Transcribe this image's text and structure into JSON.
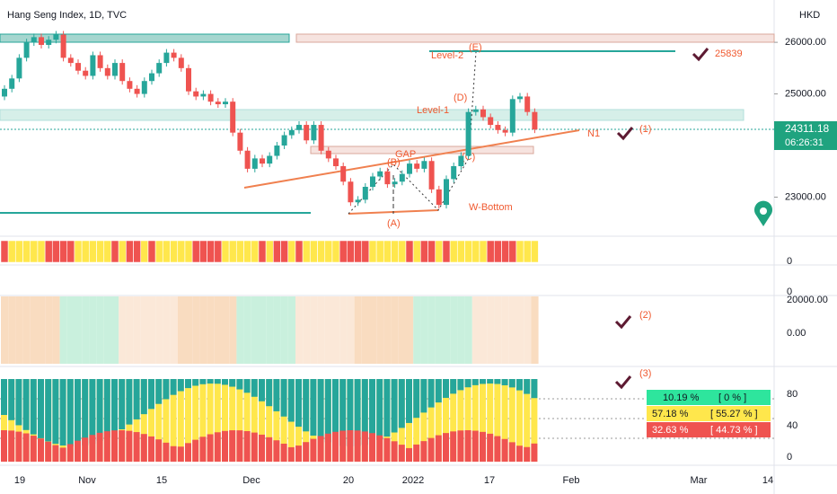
{
  "chart_data": {
    "type": "candlestick",
    "title": "Hang Seng Index, 1D, TVC",
    "currency": "HKD",
    "ylim": [
      22260,
      26820
    ],
    "yticks": [
      {
        "value": 26000,
        "label": "26000.00"
      },
      {
        "value": 25000,
        "label": "25000.00"
      },
      {
        "value": 23000,
        "label": "23000.00"
      }
    ],
    "open": [
      24950,
      25100,
      25300,
      25700,
      26000,
      26100,
      25950,
      26050,
      26150,
      25700,
      25600,
      25450,
      25350,
      25750,
      25500,
      25350,
      25600,
      25250,
      25100,
      25000,
      25250,
      25400,
      25600,
      25800,
      25700,
      25500,
      25050,
      24950,
      25000,
      24850,
      24800,
      24850,
      24250,
      23900,
      23550,
      23750,
      23650,
      23800,
      24000,
      24200,
      24300,
      24400,
      24100,
      24400,
      23900,
      23750,
      23600,
      23300,
      22900,
      22950,
      23200,
      23400,
      23500,
      23250,
      23300,
      23450,
      23650,
      23550,
      23700,
      23150,
      22850,
      23350,
      23600,
      23800,
      24650,
      24700,
      24550,
      24400,
      24300,
      24250,
      24900,
      24950,
      24650
    ],
    "close": [
      25100,
      25300,
      25700,
      26000,
      26100,
      25950,
      26050,
      26150,
      25700,
      25600,
      25450,
      25350,
      25750,
      25500,
      25350,
      25600,
      25250,
      25100,
      25000,
      25250,
      25400,
      25600,
      25800,
      25700,
      25500,
      25050,
      24950,
      25000,
      24850,
      24800,
      24850,
      24250,
      23900,
      23550,
      23750,
      23650,
      23800,
      24000,
      24200,
      24300,
      24400,
      24100,
      24400,
      23900,
      23750,
      23600,
      23300,
      22900,
      22950,
      23200,
      23400,
      23500,
      23250,
      23300,
      23450,
      23650,
      23550,
      23700,
      23150,
      22850,
      23350,
      23600,
      23800,
      24650,
      24700,
      24550,
      24400,
      24300,
      24250,
      24900,
      24950,
      24650,
      24311.18
    ],
    "up_color": "#26a69a",
    "down_color": "#ef5350",
    "last_price": {
      "value": 24311.18,
      "label": "24311.18"
    },
    "countdown": "06:26:31",
    "x_labels": [
      "19",
      "Nov",
      "15",
      "Dec",
      "20",
      "2022",
      "17",
      "Feb",
      "Mar",
      "14"
    ],
    "annotations": {
      "level2": "Level-2",
      "e": "(E)",
      "level1": "Level-1",
      "d": "(D)",
      "gap": "GAP",
      "b": "(B)",
      "c": "(C)",
      "a": "(A)",
      "wbottom": "W-Bottom",
      "n1": "N1",
      "one": "(1)",
      "target": "25839",
      "two": "(2)",
      "three": "(3)"
    },
    "pane_labels": {
      "strip": "0",
      "volume": "0",
      "osc_top": "20000.00",
      "osc_zero": "0.00",
      "p80": "80",
      "p40": "40",
      "p0": "0"
    },
    "stats": [
      {
        "pct": "10.19 %",
        "bracket": "[ 0 % ]"
      },
      {
        "pct": "57.18 %",
        "bracket": "[ 55.27 % ]"
      },
      {
        "pct": "32.63 %",
        "bracket": "[ 44.73 % ]"
      }
    ]
  }
}
